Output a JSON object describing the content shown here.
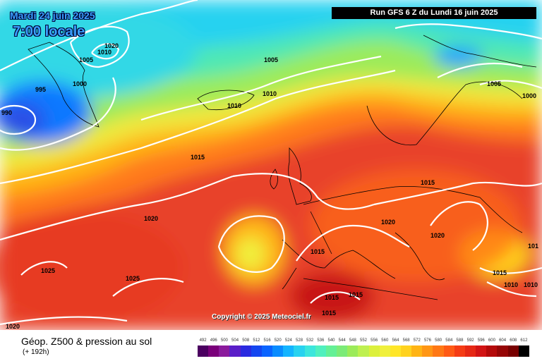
{
  "header": {
    "date": "Mardi 24 juin 2025",
    "local_time": "7:00 locale",
    "run_info": "Run GFS 6 Z du Lundi 16 juin 2025"
  },
  "map": {
    "copyright": "Copyright © 2025 Meteociel.fr",
    "isobar_labels": [
      "1020",
      "1010",
      "1005",
      "995",
      "1000",
      "990",
      "1005",
      "1010",
      "1010",
      "1005",
      "1000",
      "1015",
      "1015",
      "1020",
      "1020",
      "1015",
      "1020",
      "1025",
      "1025",
      "1015",
      "1015",
      "1015",
      "1020",
      "1015",
      "1010",
      "101",
      "1015",
      "1010"
    ]
  },
  "footer": {
    "title": "Géop. Z500 & pression au sol",
    "subtitle": "(+ 192h)"
  },
  "scale": {
    "labels": [
      "492",
      "496",
      "500",
      "504",
      "508",
      "512",
      "516",
      "520",
      "524",
      "528",
      "532",
      "536",
      "540",
      "544",
      "548",
      "552",
      "556",
      "560",
      "564",
      "568",
      "572",
      "576",
      "580",
      "584",
      "588",
      "592",
      "596",
      "600",
      "604",
      "608",
      "612"
    ],
    "colors": [
      "#4b0060",
      "#7a007a",
      "#8b1a9c",
      "#5a1ec8",
      "#2a2ae0",
      "#1446f0",
      "#0a64ff",
      "#0a8cff",
      "#14b4ff",
      "#28d2f0",
      "#3ce6dc",
      "#50f0be",
      "#64f096",
      "#7ceb78",
      "#9ceb5a",
      "#bef050",
      "#dcf03c",
      "#f0f03c",
      "#ffe628",
      "#ffd21e",
      "#ffb414",
      "#ff9614",
      "#ff7814",
      "#ff5a14",
      "#f53c14",
      "#e62814",
      "#d21414",
      "#b40a0a",
      "#960505",
      "#780000",
      "#000000"
    ]
  }
}
